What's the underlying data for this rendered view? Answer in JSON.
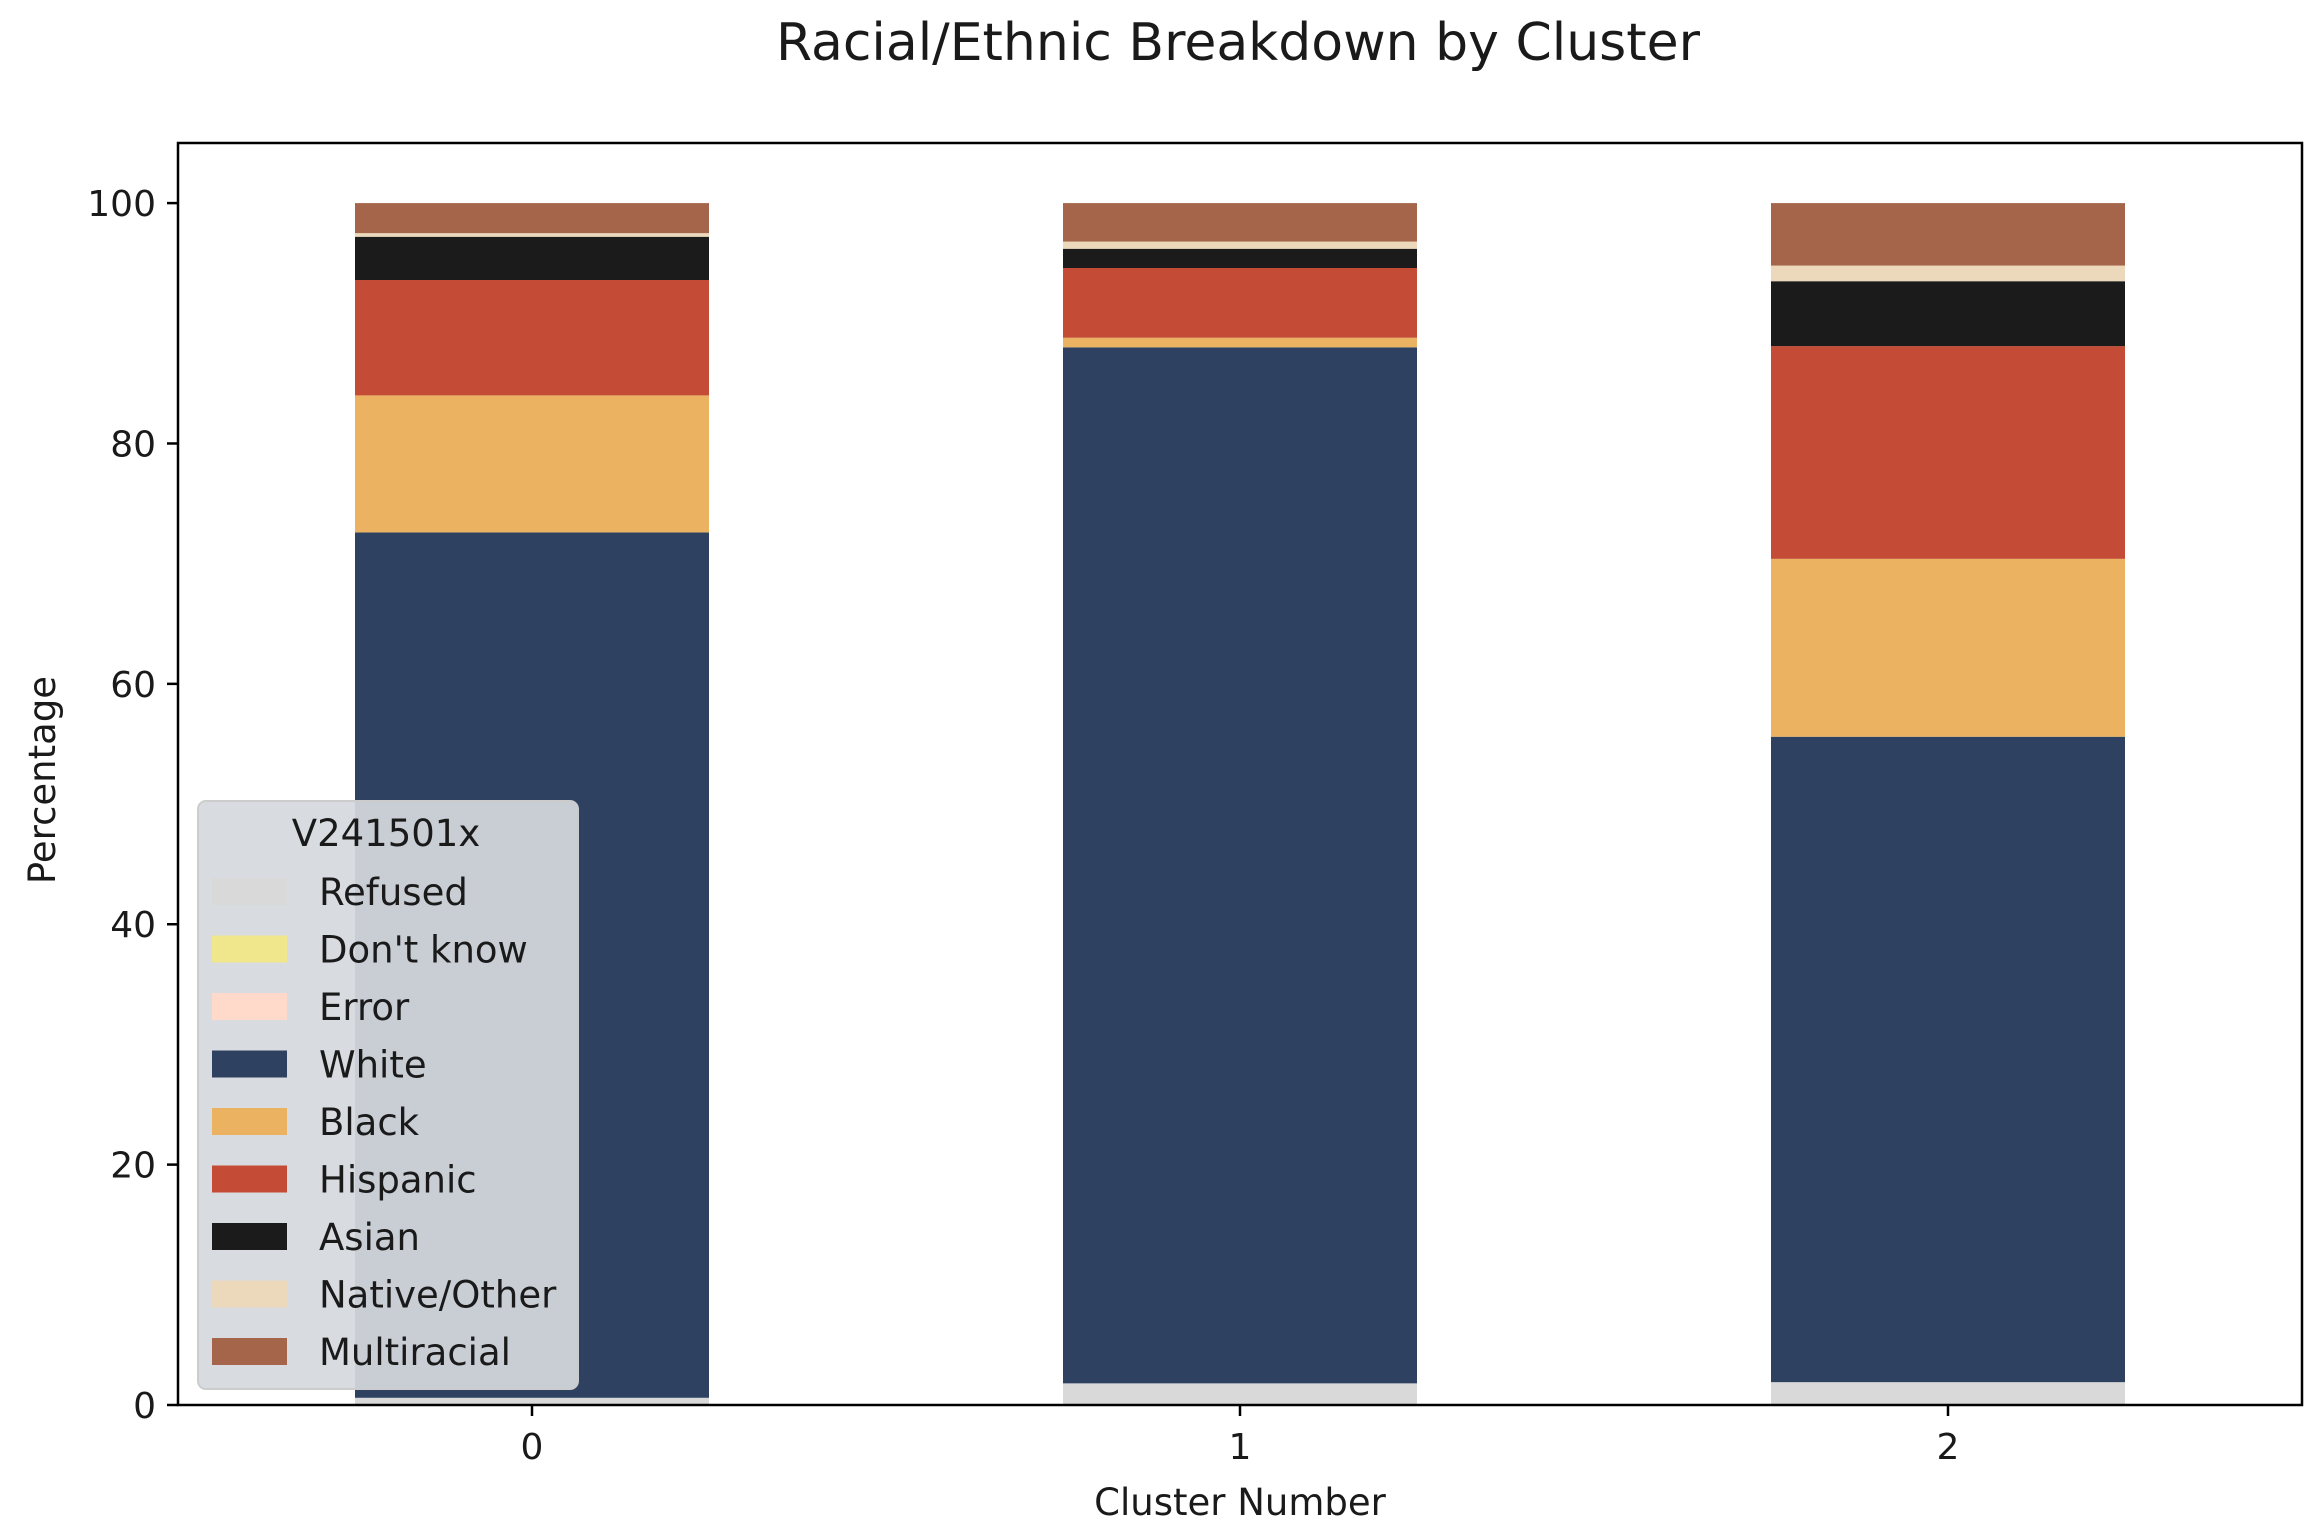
{
  "chart_data": {
    "type": "bar",
    "stacked": true,
    "title": "Racial/Ethnic Breakdown by Cluster",
    "xlabel": "Cluster Number",
    "ylabel": "Percentage",
    "ylim": [
      0,
      105
    ],
    "yticks": [
      0,
      20,
      40,
      60,
      80,
      100
    ],
    "categories": [
      "0",
      "1",
      "2"
    ],
    "grid": false,
    "legend": {
      "title": "V241501x",
      "placement": "lower-left"
    },
    "series": [
      {
        "name": "Refused",
        "color": "#d9d9d9",
        "values": [
          0.6,
          1.8,
          1.9
        ]
      },
      {
        "name": "Don't know",
        "color": "#f0e68c",
        "values": [
          0.0,
          0.0,
          0.0
        ]
      },
      {
        "name": "Error",
        "color": "#ffd9c9",
        "values": [
          0.0,
          0.0,
          0.0
        ]
      },
      {
        "name": "White",
        "color": "#2e4160",
        "values": [
          72.0,
          86.2,
          53.7
        ]
      },
      {
        "name": "Black",
        "color": "#ebb262",
        "values": [
          11.4,
          0.8,
          14.8
        ]
      },
      {
        "name": "Hispanic",
        "color": "#c44b36",
        "values": [
          9.6,
          5.8,
          17.7
        ]
      },
      {
        "name": "Asian",
        "color": "#1b1b1b",
        "values": [
          3.6,
          1.6,
          5.4
        ]
      },
      {
        "name": "Native/Other",
        "color": "#ecd9bb",
        "values": [
          0.3,
          0.6,
          1.3
        ]
      },
      {
        "name": "Multiracial",
        "color": "#a5654a",
        "values": [
          2.5,
          3.2,
          5.2
        ]
      }
    ]
  }
}
